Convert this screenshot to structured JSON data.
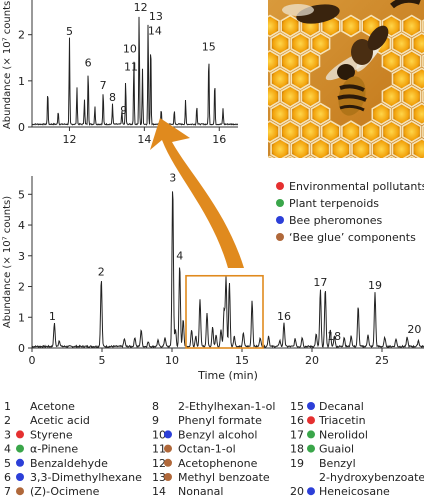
{
  "chart_data": [
    {
      "type": "line",
      "name": "inset-chromatogram",
      "ylabel": "Abundance (× 10⁷ counts)",
      "xlim": [
        11,
        16.5
      ],
      "ylim": [
        0,
        2.6
      ],
      "x_ticks": [
        "12",
        "14",
        "16"
      ],
      "x_tick_values": [
        12,
        14,
        16
      ],
      "y_ticks": [
        "0",
        "1",
        "2"
      ],
      "y_tick_values": [
        0,
        1,
        2
      ],
      "baseline": 0.06,
      "peaks": [
        {
          "x": 11.42,
          "y": 0.75
        },
        {
          "x": 11.7,
          "y": 0.3
        },
        {
          "x": 12.0,
          "y": 1.88,
          "label": "5"
        },
        {
          "x": 12.2,
          "y": 0.82
        },
        {
          "x": 12.4,
          "y": 0.55
        },
        {
          "x": 12.5,
          "y": 1.2,
          "label": "6"
        },
        {
          "x": 12.68,
          "y": 0.4
        },
        {
          "x": 12.9,
          "y": 0.72,
          "label": "7"
        },
        {
          "x": 13.15,
          "y": 0.45,
          "label": "8"
        },
        {
          "x": 13.4,
          "y": 0.3
        },
        {
          "x": 13.5,
          "y": 0.95
        },
        {
          "x": 13.72,
          "y": 1.42,
          "label": "10"
        },
        {
          "x": 13.86,
          "y": 2.45,
          "label": "12"
        },
        {
          "x": 13.95,
          "y": 1.2,
          "label": "11"
        },
        {
          "x": 14.1,
          "y": 2.25,
          "label": "13"
        },
        {
          "x": 14.17,
          "y": 1.85,
          "label": "14"
        },
        {
          "x": 14.45,
          "y": 0.35
        },
        {
          "x": 14.8,
          "y": 0.3
        },
        {
          "x": 15.1,
          "y": 0.52
        },
        {
          "x": 15.4,
          "y": 0.42
        },
        {
          "x": 15.72,
          "y": 1.55,
          "label": "15"
        },
        {
          "x": 15.88,
          "y": 0.95
        },
        {
          "x": 16.1,
          "y": 0.35
        }
      ],
      "peak_labels": [
        {
          "id": "5",
          "x": 12.0,
          "y": 1.88
        },
        {
          "id": "6",
          "x": 12.5,
          "y": 1.2
        },
        {
          "id": "7",
          "x": 12.9,
          "y": 0.72
        },
        {
          "id": "8",
          "x": 13.15,
          "y": 0.45
        },
        {
          "id": "9",
          "x": 13.45,
          "y": 0.3
        },
        {
          "id": "10",
          "x": 13.72,
          "y": 1.42
        },
        {
          "id": "11",
          "x": 13.75,
          "y": 1.2
        },
        {
          "id": "12",
          "x": 13.9,
          "y": 2.45
        },
        {
          "id": "13",
          "x": 14.12,
          "y": 2.25
        },
        {
          "id": "14",
          "x": 14.12,
          "y": 1.85
        },
        {
          "id": "15",
          "x": 15.72,
          "y": 1.55
        }
      ]
    },
    {
      "type": "line",
      "name": "main-chromatogram",
      "xlabel": "Time (min)",
      "ylabel": "Abundance (× 10⁷ counts)",
      "xlim": [
        0,
        28
      ],
      "ylim": [
        0,
        5.4
      ],
      "x_ticks": [
        "0",
        "5",
        "10",
        "15",
        "20",
        "25"
      ],
      "x_tick_values": [
        0,
        5,
        10,
        15,
        20,
        25
      ],
      "y_ticks": [
        "0",
        "1",
        "2",
        "3",
        "4",
        "5"
      ],
      "y_tick_values": [
        0,
        1,
        2,
        3,
        4,
        5
      ],
      "baseline": 0.05,
      "highlight_box": {
        "x": [
          11,
          16.5
        ],
        "y": [
          0,
          2.35
        ]
      },
      "peaks": [
        {
          "x": 1.6,
          "y": 0.75,
          "label": "1"
        },
        {
          "x": 1.95,
          "y": 0.2
        },
        {
          "x": 4.95,
          "y": 2.2,
          "label": "2"
        },
        {
          "x": 6.6,
          "y": 0.25
        },
        {
          "x": 7.35,
          "y": 0.3
        },
        {
          "x": 7.8,
          "y": 0.55
        },
        {
          "x": 8.3,
          "y": 0.15
        },
        {
          "x": 9.0,
          "y": 0.2
        },
        {
          "x": 9.5,
          "y": 0.3
        },
        {
          "x": 10.05,
          "y": 5.25,
          "label": "3"
        },
        {
          "x": 10.25,
          "y": 0.55
        },
        {
          "x": 10.55,
          "y": 2.65,
          "label": "4"
        },
        {
          "x": 10.8,
          "y": 0.9
        },
        {
          "x": 11.4,
          "y": 0.55
        },
        {
          "x": 11.7,
          "y": 0.35
        },
        {
          "x": 12.0,
          "y": 1.55
        },
        {
          "x": 12.5,
          "y": 1.1
        },
        {
          "x": 12.9,
          "y": 0.65
        },
        {
          "x": 13.15,
          "y": 0.4
        },
        {
          "x": 13.5,
          "y": 0.55
        },
        {
          "x": 13.72,
          "y": 1.2
        },
        {
          "x": 13.86,
          "y": 2.25
        },
        {
          "x": 14.1,
          "y": 2.1
        },
        {
          "x": 14.45,
          "y": 0.35
        },
        {
          "x": 15.1,
          "y": 0.45
        },
        {
          "x": 15.72,
          "y": 1.5
        },
        {
          "x": 16.3,
          "y": 0.3
        },
        {
          "x": 16.9,
          "y": 0.35
        },
        {
          "x": 17.7,
          "y": 0.2
        },
        {
          "x": 18.0,
          "y": 0.75,
          "label": "16"
        },
        {
          "x": 18.8,
          "y": 0.25
        },
        {
          "x": 19.3,
          "y": 0.3
        },
        {
          "x": 20.3,
          "y": 0.4
        },
        {
          "x": 20.6,
          "y": 1.85,
          "label": "17"
        },
        {
          "x": 20.95,
          "y": 1.9
        },
        {
          "x": 21.3,
          "y": 0.55,
          "label": "18"
        },
        {
          "x": 21.6,
          "y": 0.35
        },
        {
          "x": 22.3,
          "y": 0.3
        },
        {
          "x": 22.8,
          "y": 0.35
        },
        {
          "x": 23.3,
          "y": 1.3
        },
        {
          "x": 24.0,
          "y": 0.4
        },
        {
          "x": 24.5,
          "y": 1.75,
          "label": "19"
        },
        {
          "x": 25.2,
          "y": 0.3
        },
        {
          "x": 26.0,
          "y": 0.25
        },
        {
          "x": 26.8,
          "y": 0.3
        },
        {
          "x": 27.6,
          "y": 0.2,
          "label": "20"
        }
      ],
      "peak_labels": [
        {
          "id": "1",
          "x": 1.6,
          "y": 0.75
        },
        {
          "id": "2",
          "x": 4.95,
          "y": 2.2
        },
        {
          "id": "3",
          "x": 10.05,
          "y": 5.25
        },
        {
          "id": "4",
          "x": 10.55,
          "y": 2.65
        },
        {
          "id": "16",
          "x": 18.0,
          "y": 0.75
        },
        {
          "id": "17",
          "x": 20.6,
          "y": 1.85
        },
        {
          "id": "18",
          "x": 21.3,
          "y": 0.55
        },
        {
          "id": "19",
          "x": 24.5,
          "y": 1.75
        },
        {
          "id": "20",
          "x": 27.6,
          "y": 0.2
        }
      ]
    }
  ],
  "category_legend": [
    {
      "label": "Environmental pollutants",
      "color": "#e53030"
    },
    {
      "label": "Plant terpenoids",
      "color": "#3aa64a"
    },
    {
      "label": "Bee pheromones",
      "color": "#2c3fd8"
    },
    {
      "label": "‘Bee glue’ components",
      "color": "#b0683a"
    }
  ],
  "compounds": [
    {
      "num": "1",
      "name": "Acetone",
      "dot": null
    },
    {
      "num": "2",
      "name": "Acetic acid",
      "dot": null
    },
    {
      "num": "3",
      "name": "Styrene",
      "dot": "#e53030"
    },
    {
      "num": "4",
      "name": "α-Pinene",
      "dot": "#3aa64a"
    },
    {
      "num": "5",
      "name": "Benzaldehyde",
      "dot": "#2c3fd8"
    },
    {
      "num": "6",
      "name": "3,3-Dimethylhexane",
      "dot": "#2c3fd8"
    },
    {
      "num": "7",
      "name": "(Z)-Ocimene",
      "dot": "#b0683a"
    },
    {
      "num": "8",
      "name": "2-Ethylhexan-1-ol",
      "dot": null
    },
    {
      "num": "9",
      "name": "Phenyl formate",
      "dot": null
    },
    {
      "num": "10",
      "name": "Benzyl alcohol",
      "dot": "#2c3fd8"
    },
    {
      "num": "11",
      "name": "Octan-1-ol",
      "dot": "#b0683a"
    },
    {
      "num": "12",
      "name": "Acetophenone",
      "dot": "#b0683a"
    },
    {
      "num": "13",
      "name": "Methyl benzoate",
      "dot": "#b0683a"
    },
    {
      "num": "14",
      "name": "Nonanal",
      "dot": null
    },
    {
      "num": "15",
      "name": "Decanal",
      "dot": "#2c3fd8"
    },
    {
      "num": "16",
      "name": "Triacetin",
      "dot": "#e53030"
    },
    {
      "num": "17",
      "name": "Nerolidol",
      "dot": "#3aa64a"
    },
    {
      "num": "18",
      "name": "Guaiol",
      "dot": "#3aa64a"
    },
    {
      "num": "19",
      "name": "Benzyl",
      "name2": "2-hydroxybenzoate",
      "dot": null
    },
    {
      "num": "20",
      "name": "Heneicosane",
      "dot": "#2c3fd8"
    }
  ],
  "colors": {
    "trace": "#222222",
    "axis": "#333333",
    "highlight_box": "#e08a1e",
    "arrow": "#e08a1e"
  },
  "photo": {
    "description_icon": "honeybee-photo-icon"
  }
}
